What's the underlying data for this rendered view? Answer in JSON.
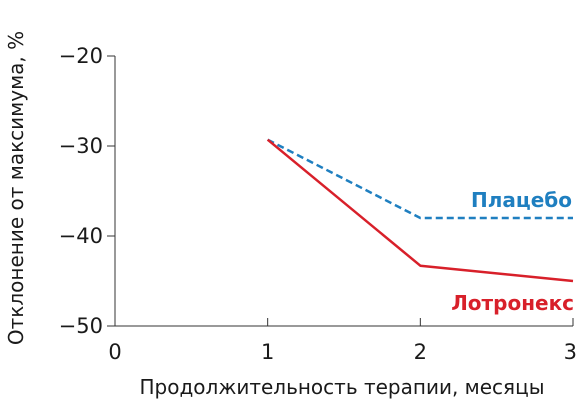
{
  "chart_data": {
    "type": "line",
    "xlabel": "Продолжительность терапии, месяцы",
    "ylabel": "Отклонение от максимума, %",
    "xlim": [
      0,
      3
    ],
    "ylim": [
      -50,
      -20
    ],
    "xticks": [
      0,
      1,
      2,
      3
    ],
    "yticks": [
      -20,
      -30,
      -40,
      -50
    ],
    "x_tick_labels": [
      "0",
      "1",
      "2",
      "3"
    ],
    "y_tick_labels": [
      "−20",
      "−30",
      "−40",
      "−50"
    ],
    "grid": false,
    "legend": "inline labels at line ends",
    "series": [
      {
        "name": "Плацебо",
        "x": [
          1,
          2,
          3
        ],
        "values": [
          -29.3,
          -38.0,
          -38.0
        ],
        "color": "#1f7fc0",
        "line_style": "dashed"
      },
      {
        "name": "Лотронекс",
        "x": [
          1,
          2,
          3
        ],
        "values": [
          -29.3,
          -43.3,
          -45.0
        ],
        "color": "#d8202a",
        "line_style": "solid"
      }
    ]
  }
}
